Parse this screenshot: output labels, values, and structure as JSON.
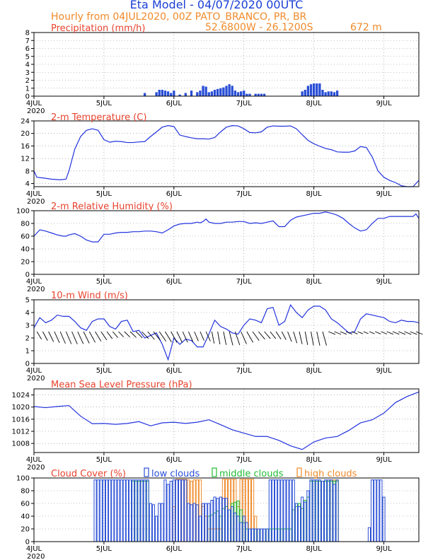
{
  "header": {
    "title": "Eta Model - 04/07/2020 00UTC",
    "subtitle": "Hourly from 04JUL2020, 00Z  PATO_BRANCO, PR, BR",
    "coords": "52.6800W - 26.1200S",
    "elevation": "672  m"
  },
  "colors": {
    "title": "#1a3fd6",
    "orange": "#f08a2a",
    "panel_title": "#e8432e",
    "series": "#2233dd",
    "bar_blue": "#2a4fd6",
    "green": "#22bb33",
    "purple": "#9966cc",
    "black": "#000000"
  },
  "x_axis": {
    "ticks": [
      0,
      24,
      48,
      72,
      96,
      120
    ],
    "labels": [
      "4JUL",
      "5JUL",
      "6JUL",
      "7JUL",
      "8JUL",
      "9JUL"
    ],
    "year": "2020",
    "range": [
      0,
      132
    ]
  },
  "chart_data": [
    {
      "id": "precip",
      "type": "bar",
      "title": "Precipitation (mm/h)",
      "ylim": [
        0,
        8
      ],
      "yticks": [
        0,
        1,
        2,
        3,
        4,
        5,
        6,
        7,
        8
      ],
      "x": [
        38,
        42,
        43,
        44,
        45,
        46,
        47,
        48,
        50,
        52,
        54,
        56,
        57,
        58,
        59,
        60,
        61,
        62,
        63,
        64,
        65,
        66,
        67,
        68,
        69,
        70,
        71,
        72,
        73,
        74,
        76,
        77,
        78,
        79,
        92,
        93,
        94,
        95,
        96,
        97,
        98,
        99,
        100,
        101,
        102,
        103,
        104
      ],
      "values": [
        0.4,
        0.5,
        0.8,
        0.8,
        0.7,
        0.6,
        0.4,
        0.7,
        0.2,
        0.4,
        0.7,
        0.5,
        0.7,
        1.3,
        1.2,
        0.5,
        0.6,
        0.8,
        0.9,
        1.0,
        1.1,
        1.3,
        1.5,
        1.3,
        0.7,
        0.5,
        0.6,
        0.7,
        0.3,
        0.3,
        0.3,
        0.3,
        0.3,
        0.3,
        0.6,
        0.8,
        1.3,
        1.5,
        1.6,
        1.6,
        1.6,
        0.8,
        0.5,
        0.6,
        0.6,
        0.5,
        0.7
      ]
    },
    {
      "id": "temp",
      "type": "line",
      "title": "2-m Temperature (C)",
      "ylim": [
        3,
        24
      ],
      "yticks": [
        4,
        8,
        12,
        16,
        20,
        24
      ],
      "x": [
        0,
        1,
        3,
        6,
        9,
        11,
        12,
        14,
        16,
        18,
        20,
        22,
        24,
        26,
        28,
        30,
        32,
        34,
        36,
        38,
        40,
        42,
        44,
        46,
        48,
        50,
        52,
        54,
        56,
        58,
        60,
        62,
        64,
        66,
        68,
        70,
        72,
        74,
        76,
        78,
        80,
        82,
        84,
        86,
        88,
        90,
        92,
        94,
        96,
        98,
        100,
        102,
        104,
        106,
        108,
        110,
        112,
        114,
        116,
        118,
        120,
        122,
        124,
        126,
        128,
        130,
        132
      ],
      "values": [
        8,
        6,
        5.8,
        5.4,
        5.2,
        5.4,
        8,
        15,
        19,
        21,
        21.5,
        21,
        18,
        17.2,
        17.5,
        17.4,
        17.1,
        17.1,
        17.3,
        17.4,
        19,
        20.5,
        22,
        22.5,
        22.2,
        19.5,
        19,
        18.6,
        18.3,
        18.3,
        18.2,
        18.7,
        20.5,
        22,
        22.5,
        22.4,
        21.5,
        20.3,
        20.2,
        20.5,
        22,
        22.4,
        22.3,
        22.3,
        22.4,
        21.5,
        19.6,
        17.8,
        16.7,
        15.9,
        15.2,
        14.8,
        14.1,
        14,
        14,
        14.4,
        15.8,
        15.5,
        12.5,
        8,
        6,
        5,
        4.3,
        3.3,
        2.6,
        3,
        5
      ]
    },
    {
      "id": "rh",
      "type": "line",
      "title": "2-m Relative Humidity (%)",
      "ylim": [
        0,
        100
      ],
      "yticks": [
        0,
        20,
        40,
        60,
        80,
        100
      ],
      "x": [
        0,
        2,
        4,
        6,
        8,
        10,
        11,
        12,
        14,
        16,
        18,
        20,
        22,
        24,
        26,
        28,
        30,
        32,
        34,
        36,
        38,
        40,
        42,
        44,
        46,
        48,
        50,
        52,
        54,
        56,
        57,
        58,
        59,
        60,
        62,
        64,
        66,
        68,
        70,
        72,
        74,
        76,
        78,
        80,
        82,
        84,
        86,
        88,
        90,
        92,
        94,
        96,
        98,
        100,
        102,
        104,
        106,
        108,
        110,
        112,
        114,
        116,
        118,
        120,
        122,
        124,
        126,
        128,
        130,
        131,
        132
      ],
      "values": [
        60,
        70,
        68,
        65,
        62,
        60,
        60,
        62,
        64,
        60,
        54,
        51,
        51,
        63,
        63,
        65,
        66,
        66,
        67,
        67,
        68,
        68,
        67,
        65,
        70,
        76,
        79,
        80,
        80,
        82,
        81,
        83,
        87,
        82,
        80,
        80,
        82,
        82,
        83,
        83,
        80,
        81,
        80,
        82,
        84,
        75,
        75,
        85,
        90,
        92,
        94,
        96,
        96,
        98,
        96,
        93,
        88,
        80,
        73,
        68,
        70,
        80,
        88,
        88,
        91,
        91,
        91,
        91,
        91,
        95,
        88
      ]
    },
    {
      "id": "wind",
      "type": "line",
      "title": "10-m Wind (m/s)",
      "ylim": [
        0,
        5
      ],
      "yticks": [
        0,
        1,
        2,
        3,
        4,
        5
      ],
      "x": [
        0,
        2,
        4,
        6,
        8,
        10,
        12,
        14,
        16,
        18,
        20,
        22,
        24,
        26,
        28,
        30,
        32,
        34,
        36,
        38,
        40,
        42,
        44,
        46,
        48,
        50,
        52,
        54,
        56,
        58,
        60,
        62,
        64,
        66,
        68,
        70,
        72,
        74,
        76,
        78,
        80,
        82,
        84,
        86,
        88,
        90,
        92,
        94,
        96,
        98,
        100,
        102,
        104,
        106,
        108,
        110,
        112,
        114,
        116,
        118,
        120,
        122,
        124,
        126,
        128,
        130,
        132
      ],
      "values": [
        2.8,
        3.6,
        3.2,
        3.4,
        3.8,
        3.7,
        3.7,
        3.3,
        2.8,
        2.6,
        3.3,
        3.5,
        3.5,
        2.9,
        2.7,
        3.3,
        3.4,
        2.5,
        2.6,
        2.0,
        2.2,
        2.4,
        1.5,
        0.3,
        2.0,
        1.5,
        1.9,
        1.8,
        1.3,
        1.3,
        2.3,
        3.4,
        2.9,
        2.7,
        2.4,
        2.3,
        3.0,
        3.5,
        3.4,
        3.2,
        4.3,
        4.4,
        3.0,
        3.3,
        4.6,
        4.0,
        3.6,
        4.2,
        4.5,
        4.5,
        4.2,
        3.5,
        3.2,
        2.8,
        2.4,
        2.5,
        3.5,
        3.9,
        3.8,
        3.7,
        3.6,
        3.3,
        3.2,
        3.4,
        3.3,
        3.3,
        3.2
      ]
    },
    {
      "id": "mslp",
      "type": "line",
      "title": "Mean Sea Level Pressure (hPa)",
      "ylim": [
        1005,
        1026
      ],
      "yticks": [
        1008,
        1012,
        1016,
        1020,
        1024
      ],
      "x": [
        0,
        4,
        8,
        12,
        16,
        20,
        24,
        28,
        32,
        36,
        40,
        44,
        48,
        52,
        56,
        60,
        64,
        68,
        72,
        76,
        80,
        84,
        88,
        92,
        96,
        100,
        104,
        108,
        112,
        116,
        120,
        124,
        128,
        132
      ],
      "values": [
        1020.2,
        1019.8,
        1020.2,
        1020.5,
        1017,
        1014.5,
        1014.6,
        1014.3,
        1014.6,
        1015.2,
        1013.8,
        1014.8,
        1015,
        1014.6,
        1015,
        1015.8,
        1014.2,
        1012.5,
        1011.4,
        1010.3,
        1010.3,
        1009,
        1007.2,
        1006,
        1008.5,
        1009.8,
        1010.3,
        1012.3,
        1014.8,
        1015.8,
        1018,
        1021.5,
        1023.5,
        1025
      ]
    },
    {
      "id": "cloud",
      "type": "bar",
      "title": "Cloud Cover (%)",
      "legend": [
        "low clouds",
        "middle clouds",
        "high clouds"
      ],
      "ylim": [
        0,
        100
      ],
      "yticks": [
        0,
        20,
        40,
        60,
        80,
        100
      ],
      "low_x": [
        21,
        22,
        23,
        24,
        25,
        26,
        27,
        28,
        29,
        30,
        31,
        32,
        33,
        34,
        35,
        36,
        37,
        38,
        39,
        40,
        41,
        42,
        43,
        44,
        45,
        46,
        47,
        48,
        49,
        50,
        51,
        52,
        53,
        54,
        55,
        56,
        57,
        58,
        59,
        60,
        61,
        62,
        63,
        64,
        65,
        66,
        67,
        68,
        69,
        70,
        71,
        72,
        73,
        74,
        75,
        76,
        77,
        78,
        79,
        80,
        81,
        82,
        83,
        84,
        85,
        86,
        87,
        88,
        89,
        90,
        91,
        92,
        93,
        94,
        95,
        96,
        97,
        98,
        99,
        100,
        101,
        102,
        103,
        104,
        105,
        106,
        107,
        108,
        109,
        110,
        111,
        112,
        113,
        114,
        115,
        116,
        117,
        118,
        119,
        120,
        121,
        122
      ],
      "low_values": [
        97,
        97,
        97,
        97,
        97,
        97,
        97,
        97,
        97,
        97,
        97,
        97,
        97,
        97,
        97,
        97,
        97,
        97,
        97,
        60,
        58,
        40,
        60,
        60,
        97,
        90,
        95,
        97,
        97,
        97,
        97,
        97,
        60,
        58,
        60,
        58,
        40,
        60,
        60,
        60,
        65,
        70,
        68,
        70,
        68,
        68,
        50,
        55,
        45,
        40,
        30,
        40,
        30,
        20,
        20,
        20,
        20,
        20,
        20,
        20,
        97,
        97,
        97,
        97,
        97,
        97,
        97,
        97,
        97,
        60,
        55,
        70,
        62,
        80,
        97,
        97,
        97,
        97,
        95,
        97,
        97,
        97,
        90,
        97,
        0,
        0,
        0,
        0,
        0,
        0,
        0,
        0,
        0,
        0,
        22,
        97,
        97,
        97,
        97,
        70,
        0,
        0
      ],
      "mid_x": [
        34,
        35,
        36,
        37,
        38,
        39,
        40,
        41,
        42,
        43,
        44,
        45,
        46,
        47,
        48,
        49,
        50,
        51,
        52,
        53,
        54,
        55,
        56,
        57,
        58,
        59,
        60,
        61,
        62,
        63,
        64,
        65,
        66,
        67,
        68,
        69,
        70,
        71,
        72,
        73,
        74,
        75,
        76,
        77,
        78,
        79,
        80,
        81,
        82,
        83,
        84,
        85,
        86,
        87,
        88,
        89,
        90,
        91,
        92,
        93,
        94,
        95,
        96,
        97,
        98,
        99,
        100,
        101,
        102,
        103,
        104
      ],
      "mid_values": [
        95,
        95,
        95,
        95,
        95,
        95,
        0,
        0,
        0,
        0,
        0,
        0,
        0,
        0,
        0,
        0,
        0,
        0,
        0,
        0,
        0,
        0,
        0,
        0,
        0,
        0,
        40,
        42,
        45,
        48,
        40,
        52,
        55,
        50,
        60,
        62,
        64,
        50,
        30,
        20,
        20,
        20,
        20,
        20,
        20,
        20,
        20,
        20,
        20,
        20,
        20,
        20,
        20,
        20,
        20,
        50,
        55,
        60,
        52,
        65,
        70,
        95,
        95,
        95,
        95,
        95,
        95,
        95,
        95,
        95,
        95
      ],
      "high_x": [
        48,
        49,
        50,
        51,
        52,
        53,
        54,
        55,
        56,
        57,
        58,
        59,
        60,
        61,
        62,
        63,
        64,
        65,
        66,
        67,
        68,
        69,
        70,
        71,
        72,
        73,
        74,
        75,
        76,
        77,
        78,
        79,
        80,
        81,
        82,
        83,
        84,
        85,
        86,
        87,
        88,
        89,
        90,
        91,
        92,
        93,
        94,
        95,
        96,
        97,
        98,
        99,
        100,
        101,
        102,
        103,
        104,
        105,
        106,
        107,
        108,
        109,
        110,
        111,
        112,
        113,
        114,
        115,
        116,
        117,
        118,
        119,
        120
      ],
      "high_values": [
        55,
        98,
        98,
        98,
        98,
        97,
        95,
        97,
        97,
        97,
        55,
        40,
        20,
        20,
        20,
        20,
        20,
        98,
        98,
        98,
        98,
        98,
        55,
        98,
        98,
        98,
        98,
        98,
        40,
        0,
        0,
        0,
        0,
        0,
        0,
        0,
        0,
        0,
        0,
        0,
        0,
        0,
        0,
        0,
        0,
        0,
        0,
        0,
        0,
        0,
        0,
        0,
        0,
        0,
        97,
        97,
        97,
        0,
        0,
        0,
        0,
        0,
        0,
        0,
        0,
        0,
        0,
        0,
        0,
        0,
        0,
        0,
        0
      ]
    }
  ]
}
